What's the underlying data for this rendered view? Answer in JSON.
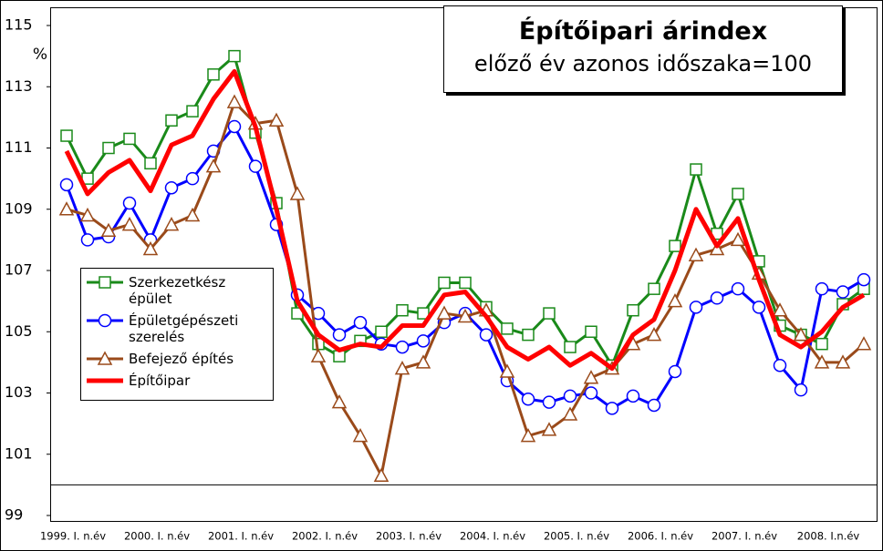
{
  "chart_data": {
    "type": "line",
    "title": "Építőipari árindex",
    "subtitle": "előző év azonos időszaka=100",
    "y_label": "%",
    "categories": [
      "1999. I. n.év",
      null,
      null,
      null,
      "2000. I. n.év",
      null,
      null,
      null,
      "2001. I. n.év",
      null,
      null,
      null,
      "2002. I. n.év",
      null,
      null,
      null,
      "2003. I. n.év",
      null,
      null,
      null,
      "2004. I. n.év",
      null,
      null,
      null,
      "2005. I. n.év",
      null,
      null,
      null,
      "2006. I. n.év",
      null,
      null,
      null,
      "2007. I. n.év",
      null,
      null,
      null,
      "2008. I.n.év",
      null,
      null
    ],
    "ylim": [
      99,
      115
    ],
    "yticks": [
      99,
      101,
      103,
      105,
      107,
      109,
      111,
      113,
      115
    ],
    "reference_line": 100,
    "series": [
      {
        "name": "Szerkezetkész épület",
        "color": "#1a8a1a",
        "marker": "square",
        "values": [
          111.4,
          110.0,
          111.0,
          111.3,
          110.5,
          111.9,
          112.2,
          113.4,
          114.0,
          111.5,
          109.2,
          105.6,
          104.6,
          104.2,
          104.7,
          105.0,
          105.7,
          105.6,
          106.6,
          106.6,
          105.8,
          105.1,
          104.9,
          105.6,
          104.5,
          105.0,
          103.9,
          105.7,
          106.4,
          107.8,
          110.3,
          108.2,
          109.5,
          107.3,
          105.2,
          104.9,
          104.6,
          105.9,
          106.4
        ]
      },
      {
        "name": "Épületgépészeti szerelés",
        "color": "#0000ff",
        "marker": "circle",
        "values": [
          109.8,
          108.0,
          108.1,
          109.2,
          108.0,
          109.7,
          110.0,
          110.9,
          111.7,
          110.4,
          108.5,
          106.2,
          105.6,
          104.9,
          105.3,
          104.6,
          104.5,
          104.7,
          105.3,
          105.6,
          104.9,
          103.4,
          102.8,
          102.7,
          102.9,
          103.0,
          102.5,
          102.9,
          102.6,
          103.7,
          105.8,
          106.1,
          106.4,
          105.8,
          103.9,
          103.1,
          106.4,
          106.3,
          106.7
        ]
      },
      {
        "name": "Befejező építés",
        "color": "#9a4a1a",
        "marker": "triangle",
        "values": [
          109.0,
          108.8,
          108.3,
          108.5,
          107.7,
          108.5,
          108.8,
          110.4,
          112.5,
          111.8,
          111.9,
          109.5,
          104.2,
          102.7,
          101.6,
          100.3,
          103.8,
          104.0,
          105.6,
          105.5,
          105.7,
          103.7,
          101.6,
          101.8,
          102.3,
          103.5,
          103.8,
          104.6,
          104.9,
          106.0,
          107.5,
          107.7,
          108.0,
          106.9,
          105.7,
          104.9,
          104.0,
          104.0,
          104.6
        ]
      },
      {
        "name": "Építőipar",
        "color": "#ff0000",
        "marker": "none",
        "values": [
          110.9,
          109.5,
          110.2,
          110.6,
          109.6,
          111.1,
          111.4,
          112.6,
          113.5,
          111.7,
          109.0,
          106.0,
          104.9,
          104.4,
          104.6,
          104.5,
          105.2,
          105.2,
          106.2,
          106.3,
          105.5,
          104.5,
          104.1,
          104.5,
          103.9,
          104.3,
          103.8,
          104.9,
          105.4,
          107.0,
          109.0,
          107.8,
          108.7,
          106.7,
          104.9,
          104.5,
          105.0,
          105.8,
          106.2
        ]
      }
    ]
  }
}
